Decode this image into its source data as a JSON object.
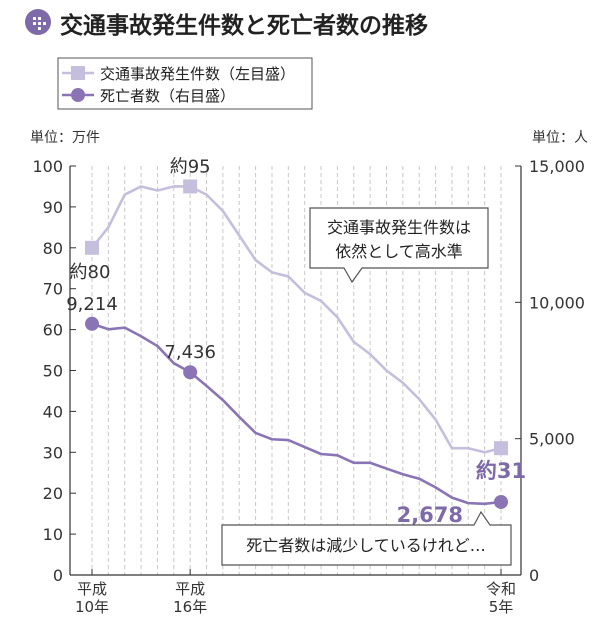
{
  "header": {
    "title": "交通事故発生件数と死亡者数の推移",
    "icon": "dotted-circle-icon",
    "accent_color": "#7e6aa8"
  },
  "chart_data": {
    "type": "line",
    "legend_position": "top-left",
    "grid": "vertical-dashed",
    "x": [
      1998,
      1999,
      2000,
      2001,
      2002,
      2003,
      2004,
      2005,
      2006,
      2007,
      2008,
      2009,
      2010,
      2011,
      2012,
      2013,
      2014,
      2015,
      2016,
      2017,
      2018,
      2019,
      2020,
      2021,
      2022,
      2023
    ],
    "x_tick_labels": [
      {
        "x": 1998,
        "line1": "平成",
        "line2": "10年"
      },
      {
        "x": 2004,
        "line1": "平成",
        "line2": "16年"
      },
      {
        "x": 2023,
        "line1": "令和",
        "line2": "5年"
      }
    ],
    "y_left": {
      "unit_label": "単位：万件",
      "ylim": [
        0,
        100
      ],
      "ticks": [
        "0",
        "10",
        "20",
        "30",
        "40",
        "50",
        "60",
        "70",
        "80",
        "90",
        "100"
      ]
    },
    "y_right": {
      "unit_label": "単位：人",
      "ylim": [
        0,
        15000
      ],
      "ticks": [
        "0",
        "5,000",
        "10,000",
        "15,000"
      ]
    },
    "series": [
      {
        "name": "交通事故発生件数（左目盛）",
        "axis": "left",
        "marker": "square",
        "color": "#c5bedc",
        "values": [
          80,
          85,
          93,
          95,
          94,
          95,
          95,
          93,
          89,
          83,
          77,
          74,
          73,
          69,
          67,
          63,
          57,
          54,
          50,
          47,
          43,
          38,
          31,
          31,
          30,
          31
        ]
      },
      {
        "name": "死亡者数（右目盛）",
        "axis": "right",
        "marker": "circle",
        "color": "#8a74b5",
        "values": [
          9214,
          9012,
          9073,
          8757,
          8396,
          7768,
          7436,
          6937,
          6415,
          5796,
          5209,
          4979,
          4948,
          4691,
          4438,
          4388,
          4113,
          4117,
          3904,
          3694,
          3532,
          3215,
          2839,
          2636,
          2610,
          2678
        ]
      }
    ],
    "point_labels": [
      {
        "series": 0,
        "x": 1998,
        "text": "約80",
        "pos": "below",
        "bold": false,
        "color": "#333333"
      },
      {
        "series": 0,
        "x": 2004,
        "text": "約95",
        "pos": "above",
        "bold": false,
        "color": "#333333"
      },
      {
        "series": 0,
        "x": 2023,
        "text": "約31",
        "pos": "below",
        "bold": true,
        "color": "#7e6aa8"
      },
      {
        "series": 1,
        "x": 1998,
        "text": "9,214",
        "pos": "above",
        "bold": false,
        "color": "#333333"
      },
      {
        "series": 1,
        "x": 2004,
        "text": "7,436",
        "pos": "above",
        "bold": false,
        "color": "#333333"
      },
      {
        "series": 1,
        "x": 2023,
        "text": "2,678",
        "pos": "left",
        "bold": true,
        "color": "#7e6aa8"
      }
    ],
    "callouts": [
      {
        "lines": [
          "交通事故発生件数は",
          "依然として高水準"
        ],
        "pointer": "down"
      },
      {
        "lines": [
          "死亡者数は減少しているけれど…"
        ],
        "pointer": "up"
      }
    ]
  }
}
